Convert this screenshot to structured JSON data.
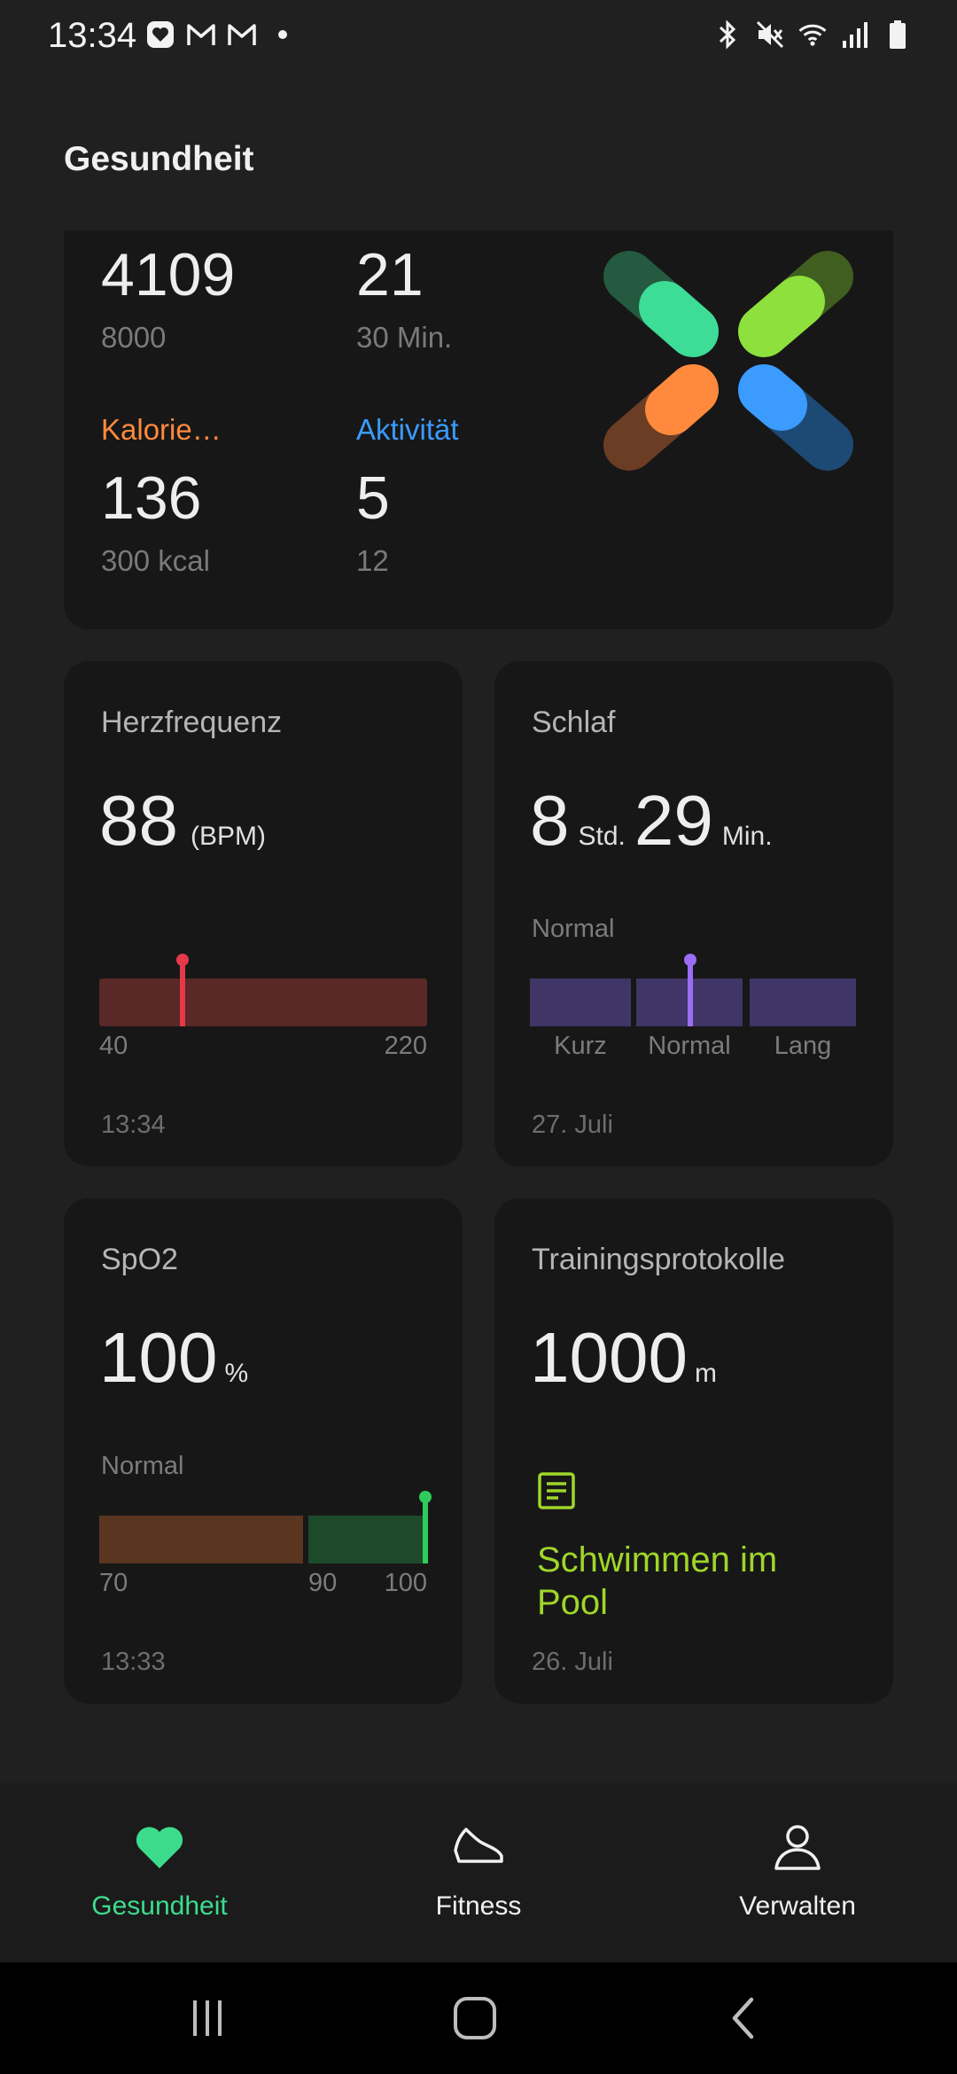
{
  "status_bar": {
    "time": "13:34",
    "left_icons": [
      "health-app-icon",
      "gmail-icon",
      "gmail-icon",
      "dot-icon"
    ],
    "right_icons": [
      "bluetooth-icon",
      "mute-icon",
      "wifi-icon",
      "signal-icon",
      "battery-icon"
    ]
  },
  "header": {
    "title": "Gesundheit"
  },
  "summary": {
    "steps_value": "4109",
    "steps_goal": "8000",
    "exercise_value": "21",
    "exercise_goal": "30 Min.",
    "calories_label": "Kalorie…",
    "calories_value": "136",
    "calories_goal": "300 kcal",
    "activity_label": "Aktivität",
    "activity_value": "5",
    "activity_goal": "12",
    "colors": {
      "steps": "#3ddc97",
      "exercise": "#8ee03c",
      "calories": "#ff8a3d",
      "activity": "#3b9bff"
    }
  },
  "heart_rate": {
    "title": "Herzfrequenz",
    "value": "88",
    "unit": "(BPM)",
    "range_min": "40",
    "range_max": "220",
    "marker_value": 88,
    "time": "13:34",
    "color": "#e5394a"
  },
  "sleep": {
    "title": "Schlaf",
    "hours": "8",
    "hours_unit": "Std.",
    "minutes": "29",
    "minutes_unit": "Min.",
    "status": "Normal",
    "segments": [
      "Kurz",
      "Normal",
      "Lang"
    ],
    "date": "27. Juli",
    "color": "#9b6cf5"
  },
  "spo2": {
    "title": "SpO2",
    "value": "100",
    "unit": "%",
    "status": "Normal",
    "tick_70": "70",
    "tick_90": "90",
    "tick_100": "100",
    "marker_value": 100,
    "time": "13:33",
    "color": "#2ecc5a"
  },
  "training": {
    "title": "Trainingsprotokolle",
    "value": "1000",
    "unit": "m",
    "activity": "Schwimmen im Pool",
    "date": "26. Juli",
    "icon": "document-icon",
    "color": "#9fd629"
  },
  "bottom_nav": {
    "items": [
      {
        "label": "Gesundheit",
        "icon": "heart-icon",
        "active": true
      },
      {
        "label": "Fitness",
        "icon": "shoe-icon",
        "active": false
      },
      {
        "label": "Verwalten",
        "icon": "person-icon",
        "active": false
      }
    ]
  },
  "system_nav": {
    "buttons": [
      "recents-icon",
      "home-icon",
      "back-icon"
    ]
  }
}
